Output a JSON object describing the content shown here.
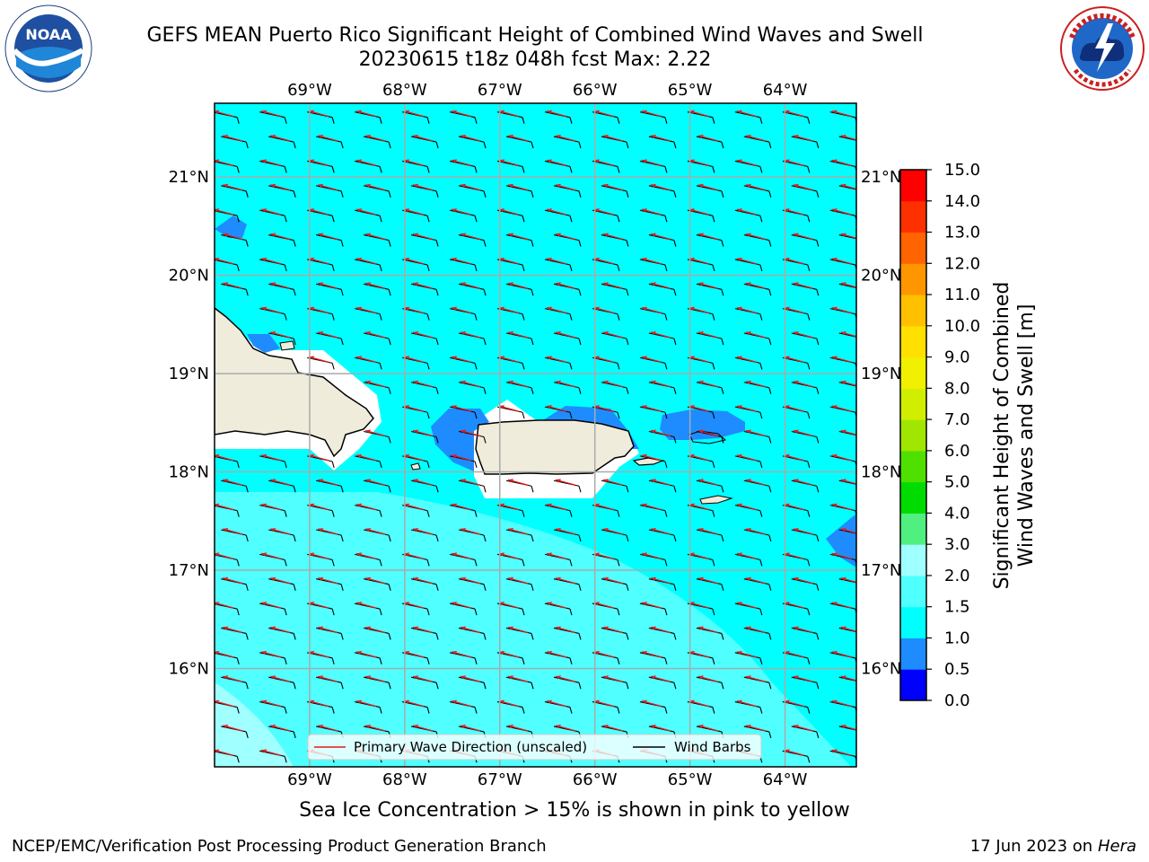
{
  "header": {
    "title": "GEFS MEAN Puerto Rico Significant Height of Combined Wind Waves and Swell",
    "subtitle": "20230615 t18z 048h fcst   Max: 2.22"
  },
  "logos": {
    "left": "noaa-logo-icon",
    "right": "nws-logo-icon"
  },
  "map": {
    "longitude_labels": [
      "69°W",
      "68°W",
      "67°W",
      "66°W",
      "65°W",
      "64°W"
    ],
    "latitude_labels": [
      "21°N",
      "20°N",
      "19°N",
      "18°N",
      "17°N",
      "16°N"
    ],
    "lon_range": [
      -70.0,
      -63.25
    ],
    "lat_range": [
      15.0,
      21.75
    ],
    "land_color": "#efecdc",
    "sea_color": "#00ffff",
    "low_wave_color": "#1e8cff",
    "calm_color": "#ffffff",
    "light_wave_color": "#8cffff",
    "wave_arrow_color": "#e31a1c",
    "wind_barb_color": "#000000"
  },
  "legend": {
    "wave_direction_label": "Primary Wave Direction (unscaled)",
    "wind_barbs_label": "Wind Barbs"
  },
  "colorbar": {
    "label_line1": "Significant Height of Combined",
    "label_line2": "Wind Waves and Swell [m]",
    "ticks": [
      "0.0",
      "0.5",
      "1.0",
      "1.5",
      "2.0",
      "3.0",
      "4.0",
      "5.0",
      "6.0",
      "7.0",
      "8.0",
      "9.0",
      "10.0",
      "11.0",
      "12.0",
      "13.0",
      "14.0",
      "15.0"
    ],
    "colors": [
      "#0000ff",
      "#1e8cff",
      "#00ffff",
      "#50ffff",
      "#a0ffff",
      "#50f080",
      "#00dc00",
      "#50e000",
      "#a0e600",
      "#d2ee00",
      "#f0f000",
      "#ffe000",
      "#ffc000",
      "#ff9600",
      "#ff6400",
      "#ff3000",
      "#ff0000"
    ]
  },
  "note": "Sea Ice Concentration > 15% is shown in pink to yellow",
  "footer": {
    "left": "NCEP/EMC/Verification Post Processing Product Generation Branch",
    "right_date": "17 Jun 2023 on",
    "right_host": "Hera"
  }
}
